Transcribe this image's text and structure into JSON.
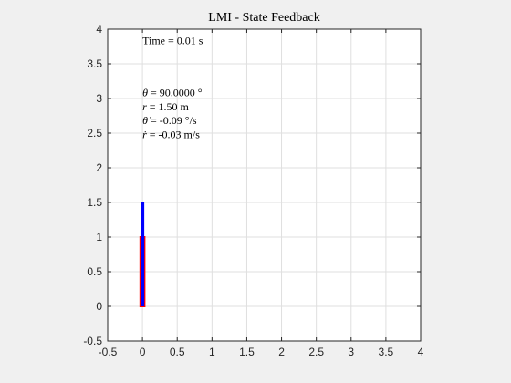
{
  "chart_data": {
    "type": "line",
    "title": "LMI - State Feedback",
    "xlabel": "",
    "ylabel": "",
    "xlim": [
      -0.5,
      4
    ],
    "ylim": [
      -0.5,
      4
    ],
    "grid": true,
    "xticks": [
      -0.5,
      0,
      0.5,
      1,
      1.5,
      2,
      2.5,
      3,
      3.5,
      4
    ],
    "yticks": [
      -0.5,
      0,
      0.5,
      1,
      1.5,
      2,
      2.5,
      3,
      3.5,
      4
    ],
    "xtick_labels": [
      "-0.5",
      "0",
      "0.5",
      "1",
      "1.5",
      "2",
      "2.5",
      "3",
      "3.5",
      "4"
    ],
    "ytick_labels": [
      "-0.5",
      "0",
      "0.5",
      "1",
      "1.5",
      "2",
      "2.5",
      "3",
      "3.5",
      "4"
    ],
    "series": [
      {
        "kind": "rectangle",
        "x": [
          -0.03,
          0.03
        ],
        "y": [
          0,
          1
        ],
        "edge_color": "#ff0000",
        "fill_color": "#0000ff"
      },
      {
        "kind": "line",
        "x": [
          0,
          0
        ],
        "y": [
          0,
          1.5
        ],
        "color": "#0000ff"
      }
    ],
    "annotations": [
      {
        "text": "Time = 0.01 s",
        "x": 0,
        "y": 3.78
      },
      {
        "symbol": "θ",
        "text": " = 90.0000 °",
        "x": 0,
        "y": 3.03
      },
      {
        "symbol": "r",
        "text": " = 1.50 m",
        "x": 0,
        "y": 2.83
      },
      {
        "symbol": "θ̇",
        "text": " = -0.09 °/s",
        "x": 0,
        "y": 2.63
      },
      {
        "symbol": "ṙ",
        "text": " = -0.03 m/s",
        "x": 0,
        "y": 2.43
      }
    ]
  },
  "colors": {
    "figure_background": "#f0f0f0",
    "axes_background": "#ffffff",
    "grid": "#dfdfdf",
    "axis": "#262626"
  }
}
